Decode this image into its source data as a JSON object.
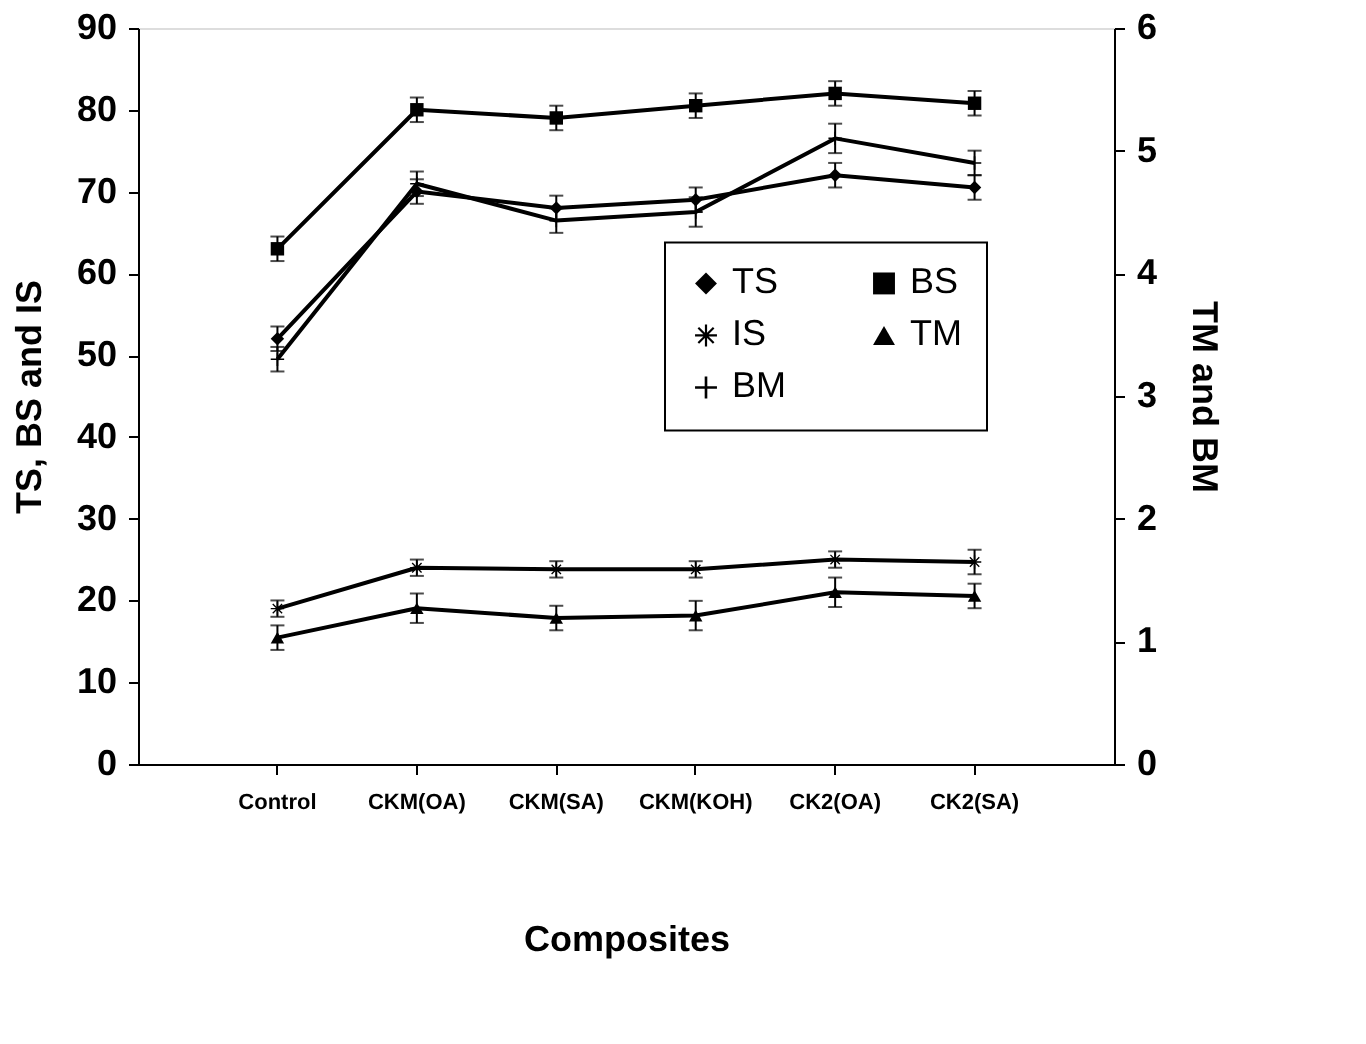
{
  "chart_data": {
    "type": "line",
    "xlabel": "Composites",
    "ylabel": "TS, BS and IS",
    "y2label": "TM and BM",
    "categories": [
      "Control",
      "CKM(OA)",
      "CKM(SA)",
      "CKM(KOH)",
      "CK2(OA)",
      "CK2(SA)"
    ],
    "series": [
      {
        "name": "TS",
        "color": "#000000",
        "marker": "diamond",
        "values": [
          52,
          70,
          68,
          69,
          72,
          70.5
        ],
        "errors": [
          1.5,
          1.5,
          1.5,
          1.5,
          1.5,
          1.5
        ]
      },
      {
        "name": "BS",
        "color": "#000000",
        "marker": "square",
        "values": [
          63,
          80,
          79,
          80.5,
          82,
          80.8
        ],
        "errors": [
          1.5,
          1.5,
          1.5,
          1.5,
          1.5,
          1.5
        ]
      },
      {
        "name": "IS",
        "color": "#000000",
        "marker": "star",
        "values": [
          19,
          24,
          23.8,
          23.8,
          25,
          24.7
        ],
        "errors": [
          1,
          1,
          1,
          1,
          1,
          1.5
        ]
      },
      {
        "name": "TM",
        "color": "#000000",
        "marker": "triangle",
        "axis": "y2",
        "values": [
          1.03,
          1.27,
          1.19,
          1.21,
          1.4,
          1.37
        ],
        "errors": [
          0.1,
          0.12,
          0.1,
          0.12,
          0.12,
          0.1
        ]
      },
      {
        "name": "BM",
        "color": "#000000",
        "marker": "cross",
        "axis": "y2",
        "values": [
          3.3,
          4.73,
          4.43,
          4.5,
          5.1,
          4.9
        ],
        "errors": [
          0.1,
          0.1,
          0.1,
          0.12,
          0.12,
          0.1
        ]
      }
    ],
    "ylim": [
      0,
      90
    ],
    "yticks": [
      0,
      10,
      20,
      30,
      40,
      50,
      60,
      70,
      80,
      90
    ],
    "y2lim": [
      0,
      6
    ],
    "y2ticks": [
      0,
      1,
      2,
      3,
      4,
      5,
      6
    ],
    "grid": false,
    "legend": "right",
    "line_style": "solid"
  }
}
